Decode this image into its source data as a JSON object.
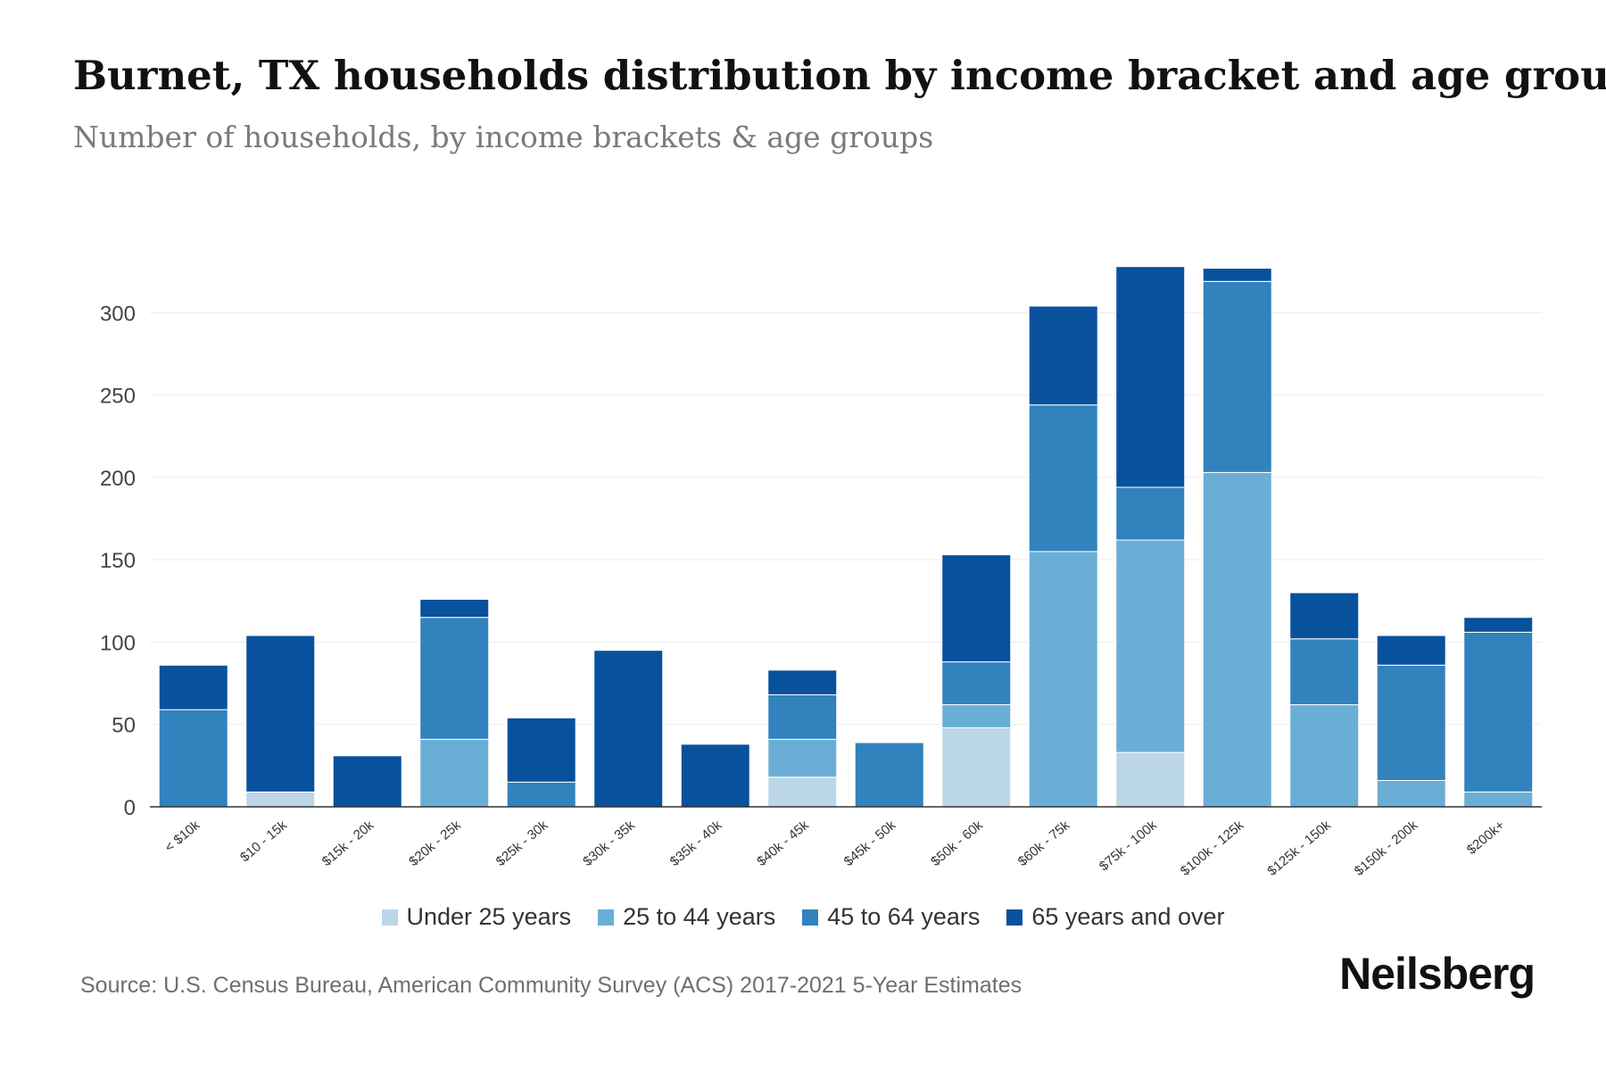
{
  "header": {
    "title": "Burnet, TX households distribution by income bracket and age group",
    "subtitle": "Number of households, by income brackets & age groups"
  },
  "footer": {
    "source": "Source: U.S. Census Bureau, American Community Survey (ACS) 2017-2021 5-Year Estimates",
    "brand": "Neilsberg"
  },
  "chart_data": {
    "type": "bar",
    "stacked": true,
    "title": "Burnet, TX households distribution by income bracket and age group",
    "subtitle": "Number of households, by income brackets & age groups",
    "xlabel": "",
    "ylabel": "",
    "ylim": [
      0,
      330
    ],
    "yticks": [
      0,
      50,
      100,
      150,
      200,
      250,
      300
    ],
    "grid": true,
    "legend_position": "bottom",
    "categories": [
      "< $10k",
      "$10 - 15k",
      "$15k - 20k",
      "$20k - 25k",
      "$25k - 30k",
      "$30k - 35k",
      "$35k - 40k",
      "$40k - 45k",
      "$45k - 50k",
      "$50k - 60k",
      "$60k - 75k",
      "$75k - 100k",
      "$100k - 125k",
      "$125k - 150k",
      "$150k - 200k",
      "$200k+"
    ],
    "series": [
      {
        "name": "Under 25 years",
        "color": "#bcd7e8",
        "values": [
          0,
          9,
          0,
          0,
          0,
          0,
          0,
          18,
          0,
          48,
          0,
          33,
          0,
          0,
          0,
          0
        ]
      },
      {
        "name": "25 to 44 years",
        "color": "#6aaed6",
        "values": [
          0,
          0,
          0,
          41,
          0,
          0,
          0,
          23,
          0,
          14,
          155,
          129,
          203,
          62,
          16,
          9
        ]
      },
      {
        "name": "45 to 64 years",
        "color": "#3182bd",
        "values": [
          59,
          0,
          0,
          74,
          15,
          0,
          0,
          27,
          39,
          26,
          89,
          32,
          116,
          40,
          70,
          97
        ]
      },
      {
        "name": "65 years and over",
        "color": "#08519c",
        "values": [
          27,
          95,
          31,
          11,
          39,
          95,
          38,
          15,
          0,
          65,
          60,
          134,
          8,
          28,
          18,
          9
        ]
      }
    ]
  }
}
